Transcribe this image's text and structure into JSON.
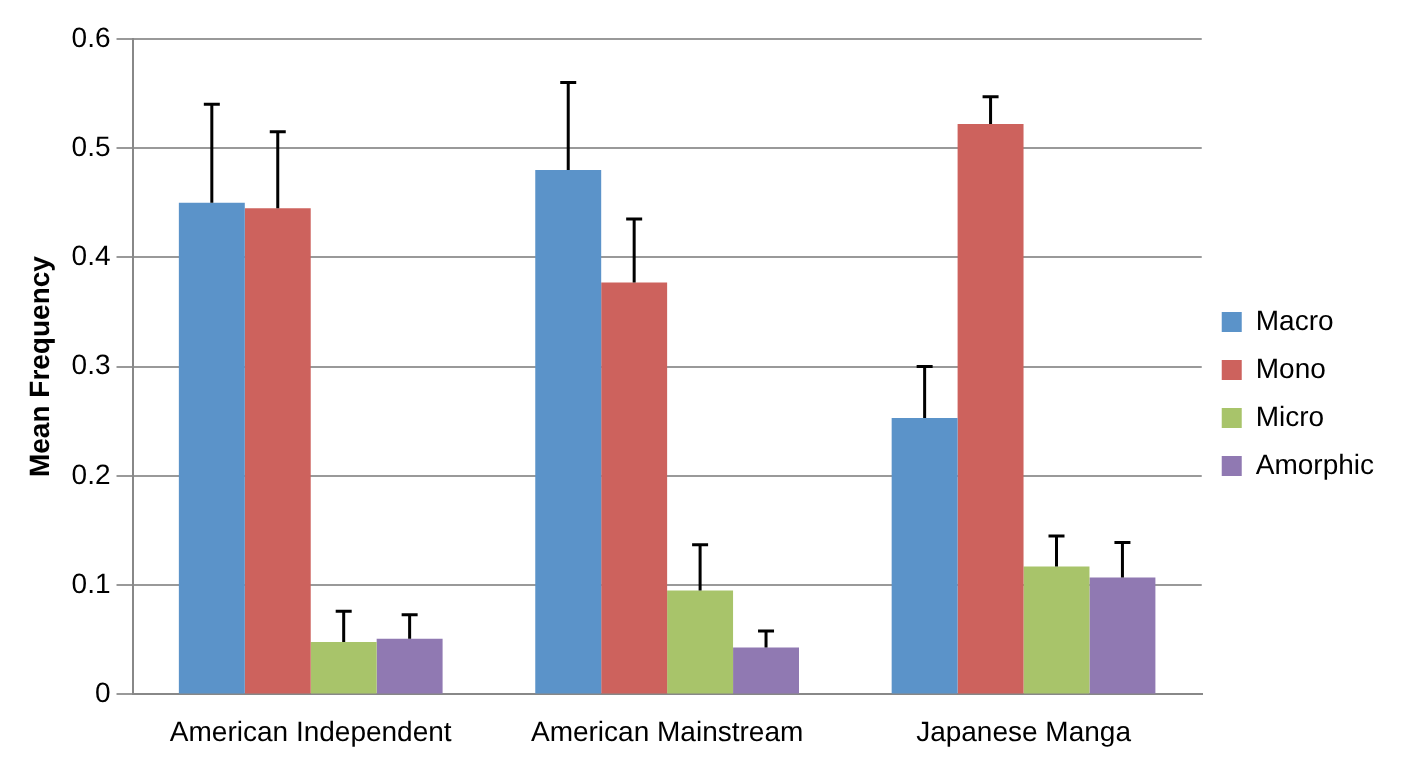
{
  "chart_data": {
    "type": "bar",
    "ylabel": "Mean Frequency",
    "categories": [
      "American Independent",
      "American Mainstream",
      "Japanese Manga"
    ],
    "series": [
      {
        "name": "Macro",
        "color": "#5b93c9",
        "values": [
          0.45,
          0.48,
          0.253
        ],
        "errors": [
          [
            0.45,
            0.54
          ],
          [
            0.48,
            0.56
          ],
          [
            0.253,
            0.3
          ]
        ]
      },
      {
        "name": "Mono",
        "color": "#cd625d",
        "values": [
          0.445,
          0.377,
          0.522
        ],
        "errors": [
          [
            0.445,
            0.515
          ],
          [
            0.377,
            0.435
          ],
          [
            0.522,
            0.547
          ]
        ]
      },
      {
        "name": "Micro",
        "color": "#a8c46a",
        "values": [
          0.048,
          0.095,
          0.117
        ],
        "errors": [
          [
            0.048,
            0.076
          ],
          [
            0.095,
            0.137
          ],
          [
            0.117,
            0.145
          ]
        ]
      },
      {
        "name": "Amorphic",
        "color": "#9079b2",
        "values": [
          0.051,
          0.043,
          0.107
        ],
        "errors": [
          [
            0.051,
            0.073
          ],
          [
            0.043,
            0.058
          ],
          [
            0.107,
            0.139
          ]
        ]
      }
    ],
    "ylim": [
      0,
      0.6
    ],
    "yticks": [
      0,
      0.1,
      0.2,
      0.3,
      0.4,
      0.5,
      0.6
    ],
    "grid": "y",
    "legend": "right"
  }
}
